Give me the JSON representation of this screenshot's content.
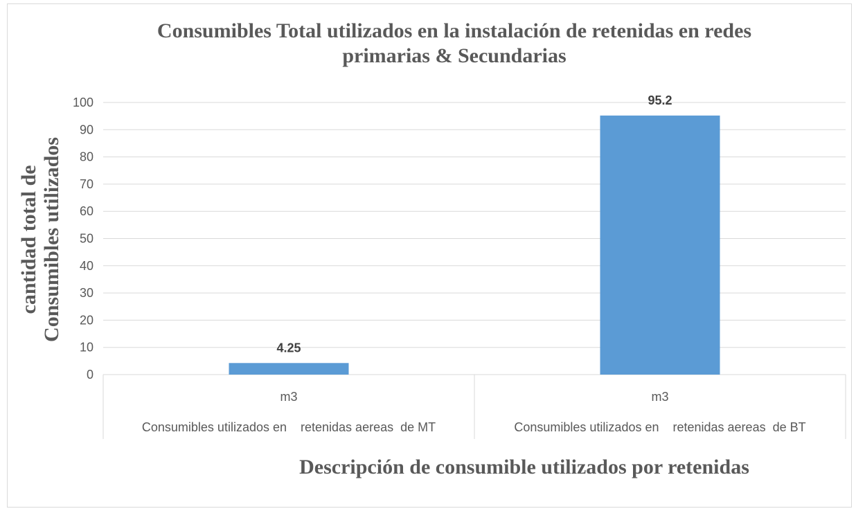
{
  "chart_data": {
    "type": "bar",
    "title": "Consumibles Total utilizados en la instalación de retenidas en redes primarias & Secundarias",
    "title_lines": [
      "Consumibles Total utilizados en la instalación de retenidas en redes",
      "primarias & Secundarias"
    ],
    "ylabel": "cantidad total de Consumibles utilizados",
    "ylabel_lines": [
      "cantidad total de",
      "Consumibles utilizados"
    ],
    "xlabel": "Descripción de consumible utilizados por retenidas",
    "categories": [
      {
        "unit": "m3",
        "group": "Consumibles utilizados en    retenidas aereas  de MT"
      },
      {
        "unit": "m3",
        "group": "Consumibles utilizados en    retenidas aereas  de BT"
      }
    ],
    "values": [
      4.25,
      95.2
    ],
    "data_labels": [
      "4.25",
      "95.2"
    ],
    "ylim": [
      0,
      100
    ],
    "yticks": [
      0,
      10,
      20,
      30,
      40,
      50,
      60,
      70,
      80,
      90,
      100
    ],
    "grid": true,
    "legend": "none",
    "bar_color": "#5b9bd5"
  }
}
